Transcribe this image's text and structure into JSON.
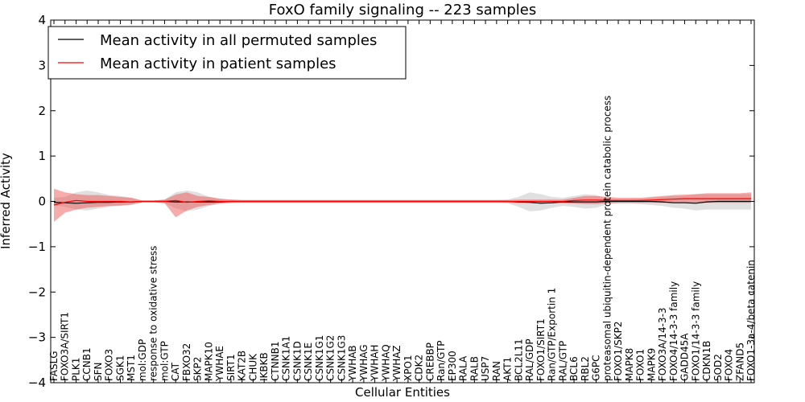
{
  "chart_data": {
    "type": "line",
    "title": "FoxO family signaling -- 223 samples",
    "xlabel": "Cellular Entities",
    "ylabel": "Inferred Activity",
    "ylim": [
      -4,
      4
    ],
    "yticks": [
      -4,
      -3,
      -2,
      -1,
      0,
      1,
      2,
      3,
      4
    ],
    "ytick_labels": [
      "−4",
      "−3",
      "−2",
      "−1",
      "0",
      "1",
      "2",
      "3",
      "4"
    ],
    "grid": false,
    "legend_position": "top-left",
    "categories": [
      "FASLG",
      "FOXO3A/SIRT1",
      "PLK1",
      "CCNB1",
      "SFN",
      "FOXO3",
      "SGK1",
      "MST1",
      "mol:GDP",
      "response to oxidative stress",
      "mol:GTP",
      "CAT",
      "FBXO32",
      "SKP2",
      "MAPK10",
      "YWHAE",
      "SIRT1",
      "KAT2B",
      "CHUK",
      "IKBKB",
      "CTNNB1",
      "CSNK1A1",
      "CSNK1D",
      "CSNK1E",
      "CSNK1G1",
      "CSNK1G2",
      "CSNK1G3",
      "YWHAB",
      "YWHAG",
      "YWHAH",
      "YWHAQ",
      "YWHAZ",
      "XPO1",
      "CDK2",
      "CREBBP",
      "Ran/GTP",
      "EP300",
      "RALA",
      "RALB",
      "USP7",
      "RAN",
      "AKT1",
      "BCL2L11",
      "RAL/GDP",
      "FOXO1/SIRT1",
      "Ran/GTP/Exportin 1",
      "RAL/GTP",
      "BCL6",
      "RBL2",
      "G6PC",
      "proteasomal ubiquitin-dependent protein catabolic process",
      "FOXO1/SKP2",
      "MAPK8",
      "FOXO1",
      "MAPK9",
      "FOXO3A/14-3-3",
      "FOXO4/14-3-3 family",
      "GADD45A",
      "FOXO1/14-3-3 family",
      "CDKN1B",
      "SOD2",
      "FOXO4",
      "ZFAND5",
      "FOXO1-3a-4/beta catenin"
    ],
    "series": [
      {
        "name": "Mean activity in all permuted samples",
        "color": "#000000",
        "values": [
          -0.02,
          -0.03,
          -0.04,
          -0.03,
          -0.02,
          -0.02,
          -0.01,
          -0.01,
          0.0,
          0.0,
          0.0,
          -0.01,
          -0.01,
          -0.01,
          -0.01,
          -0.01,
          0.0,
          0.0,
          0.0,
          0.0,
          0.0,
          0.0,
          0.0,
          0.0,
          0.0,
          0.0,
          0.0,
          0.0,
          0.0,
          0.0,
          0.0,
          0.0,
          0.0,
          0.0,
          0.0,
          0.0,
          0.0,
          0.0,
          0.0,
          0.0,
          0.0,
          0.0,
          -0.01,
          -0.02,
          -0.04,
          -0.03,
          -0.01,
          -0.01,
          -0.01,
          -0.01,
          0.0,
          0.0,
          0.0,
          0.0,
          0.0,
          -0.01,
          -0.03,
          -0.03,
          -0.04,
          -0.01,
          0.0,
          0.0,
          0.0,
          0.0
        ],
        "band_lower": [
          -0.08,
          -0.12,
          -0.18,
          -0.2,
          -0.16,
          -0.12,
          -0.1,
          -0.08,
          -0.02,
          -0.02,
          -0.04,
          -0.15,
          -0.22,
          -0.18,
          -0.1,
          -0.06,
          -0.04,
          -0.03,
          -0.03,
          -0.03,
          -0.03,
          -0.03,
          -0.03,
          -0.03,
          -0.03,
          -0.03,
          -0.03,
          -0.03,
          -0.03,
          -0.03,
          -0.03,
          -0.03,
          -0.03,
          -0.03,
          -0.03,
          -0.03,
          -0.03,
          -0.03,
          -0.03,
          -0.03,
          -0.03,
          -0.04,
          -0.12,
          -0.22,
          -0.2,
          -0.14,
          -0.1,
          -0.12,
          -0.16,
          -0.14,
          -0.06,
          -0.05,
          -0.05,
          -0.06,
          -0.08,
          -0.1,
          -0.14,
          -0.16,
          -0.2,
          -0.18,
          -0.18,
          -0.18,
          -0.18,
          -0.18
        ],
        "band_upper": [
          0.08,
          0.1,
          0.2,
          0.24,
          0.2,
          0.14,
          0.12,
          0.08,
          0.02,
          0.02,
          0.04,
          0.2,
          0.24,
          0.2,
          0.1,
          0.06,
          0.04,
          0.03,
          0.03,
          0.03,
          0.03,
          0.03,
          0.03,
          0.03,
          0.03,
          0.03,
          0.03,
          0.03,
          0.03,
          0.03,
          0.03,
          0.03,
          0.03,
          0.03,
          0.03,
          0.03,
          0.03,
          0.03,
          0.03,
          0.03,
          0.03,
          0.04,
          0.1,
          0.2,
          0.16,
          0.1,
          0.08,
          0.12,
          0.16,
          0.14,
          0.06,
          0.05,
          0.05,
          0.06,
          0.08,
          0.1,
          0.12,
          0.12,
          0.16,
          0.16,
          0.16,
          0.16,
          0.16,
          0.16
        ]
      },
      {
        "name": "Mean activity in patient samples",
        "color": "#ff0000",
        "values": [
          -0.08,
          -0.02,
          0.02,
          0.0,
          0.0,
          0.0,
          0.0,
          -0.01,
          0.0,
          0.0,
          0.0,
          0.02,
          -0.02,
          0.0,
          0.01,
          0.0,
          0.0,
          0.0,
          0.0,
          0.0,
          0.0,
          0.0,
          0.0,
          0.0,
          0.0,
          0.0,
          0.0,
          0.0,
          0.0,
          0.0,
          0.0,
          0.0,
          0.0,
          0.0,
          0.0,
          0.0,
          0.0,
          0.0,
          0.0,
          0.0,
          0.0,
          0.0,
          0.0,
          0.0,
          0.0,
          0.0,
          0.0,
          0.02,
          0.03,
          0.03,
          0.02,
          0.02,
          0.02,
          0.02,
          0.03,
          0.04,
          0.05,
          0.06,
          0.06,
          0.06,
          0.06,
          0.06,
          0.06,
          0.06
        ],
        "band_lower": [
          -0.45,
          -0.25,
          -0.18,
          -0.14,
          -0.12,
          -0.1,
          -0.09,
          -0.07,
          -0.02,
          -0.02,
          -0.04,
          -0.35,
          -0.2,
          -0.12,
          -0.08,
          -0.04,
          -0.03,
          -0.03,
          -0.03,
          -0.03,
          -0.03,
          -0.03,
          -0.03,
          -0.03,
          -0.03,
          -0.03,
          -0.03,
          -0.03,
          -0.03,
          -0.03,
          -0.03,
          -0.03,
          -0.03,
          -0.03,
          -0.03,
          -0.03,
          -0.03,
          -0.03,
          -0.03,
          -0.03,
          -0.03,
          -0.03,
          -0.04,
          -0.04,
          -0.04,
          -0.04,
          -0.04,
          -0.05,
          -0.06,
          -0.06,
          -0.04,
          -0.03,
          -0.03,
          -0.03,
          -0.03,
          -0.03,
          -0.03,
          -0.03,
          -0.03,
          -0.03,
          -0.03,
          -0.03,
          -0.03,
          -0.03
        ],
        "band_upper": [
          0.28,
          0.2,
          0.16,
          0.14,
          0.14,
          0.12,
          0.1,
          0.08,
          0.02,
          0.02,
          0.04,
          0.15,
          0.2,
          0.12,
          0.1,
          0.06,
          0.04,
          0.03,
          0.03,
          0.03,
          0.03,
          0.03,
          0.03,
          0.03,
          0.03,
          0.03,
          0.03,
          0.03,
          0.03,
          0.03,
          0.03,
          0.03,
          0.03,
          0.03,
          0.03,
          0.03,
          0.03,
          0.03,
          0.03,
          0.03,
          0.03,
          0.03,
          0.04,
          0.04,
          0.04,
          0.04,
          0.04,
          0.08,
          0.12,
          0.12,
          0.1,
          0.08,
          0.08,
          0.08,
          0.1,
          0.12,
          0.14,
          0.15,
          0.16,
          0.18,
          0.18,
          0.18,
          0.18,
          0.2
        ]
      }
    ]
  },
  "colors": {
    "permuted_band": "#bbbbbb",
    "patient_band": "#ee4444"
  }
}
